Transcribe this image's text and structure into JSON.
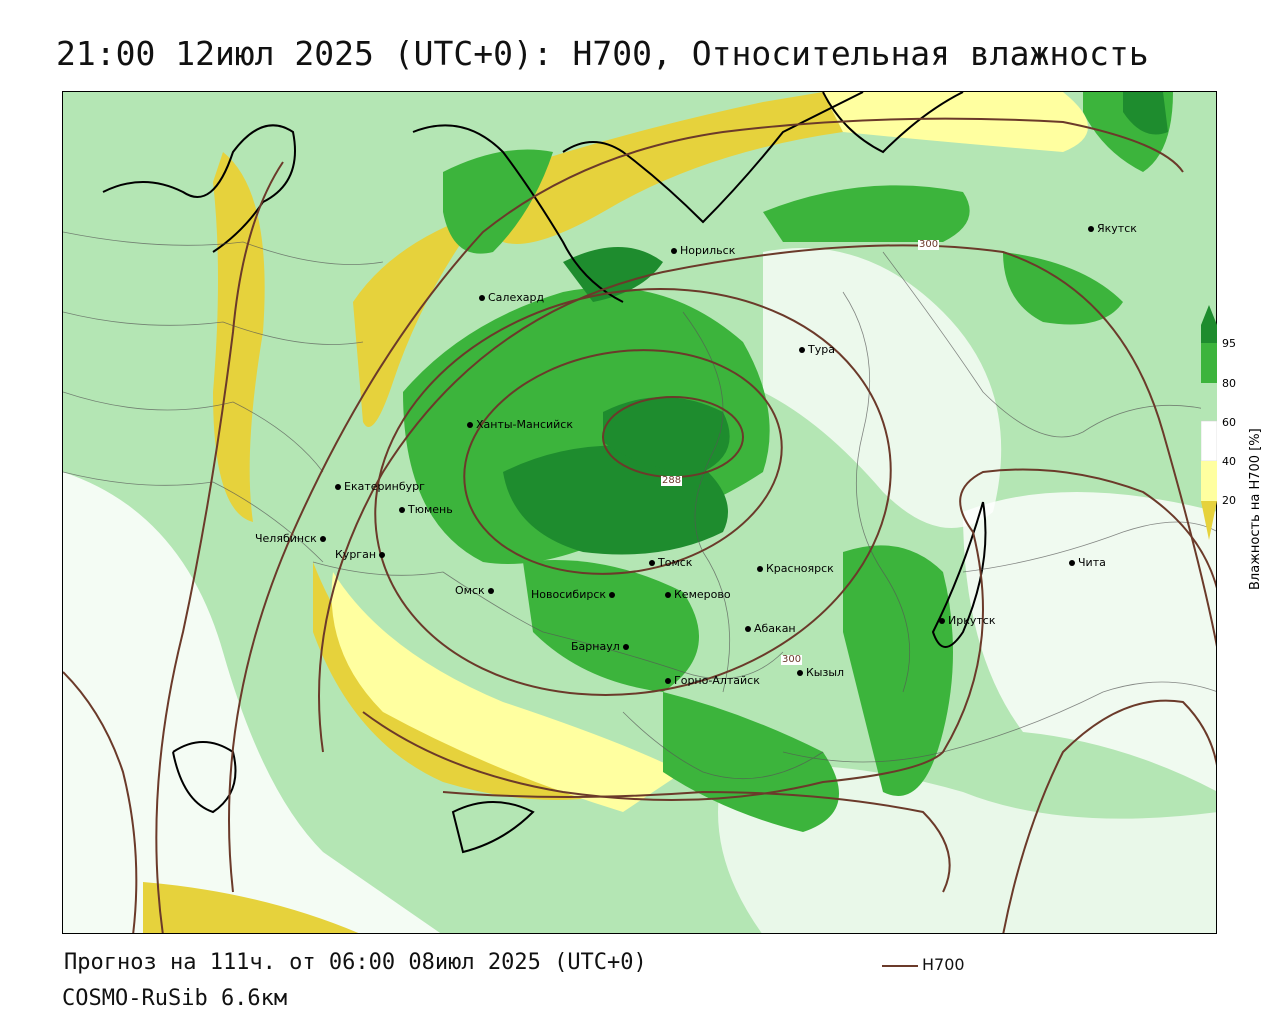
{
  "title": "21:00 12июл 2025 (UTC+0): H700, Относительная влажность",
  "forecast_line": "Прогноз на 111ч. от 06:00 08июл 2025 (UTC+0)",
  "model_line": "COSMO-RuSib 6.6км",
  "legend": {
    "series_name": "H700",
    "color": "#6b3a2a"
  },
  "colorbar": {
    "label": "Влажность на Н700 [%]",
    "ticks": [
      "95",
      "80",
      "60",
      "40",
      "20"
    ],
    "colors": {
      "95": "#1e8c2e",
      "80": "#3cb43c",
      "60": "#b4e6b4",
      "40": "#ffffff",
      "20": "#ffffa0",
      "low": "#e6d23c"
    }
  },
  "contour_labels": [
    "300",
    "288",
    "300"
  ],
  "cities": [
    {
      "name": "Якутск"
    },
    {
      "name": "Норильск"
    },
    {
      "name": "Салехард"
    },
    {
      "name": "Тура"
    },
    {
      "name": "Ханты-Мансийск"
    },
    {
      "name": "Екатеринбург"
    },
    {
      "name": "Тюмень"
    },
    {
      "name": "Челябинск"
    },
    {
      "name": "Курган"
    },
    {
      "name": "Омск"
    },
    {
      "name": "Новосибирск"
    },
    {
      "name": "Томск"
    },
    {
      "name": "Кемерово"
    },
    {
      "name": "Красноярск"
    },
    {
      "name": "Барнаул"
    },
    {
      "name": "Абакан"
    },
    {
      "name": "Горно-Алтайск"
    },
    {
      "name": "Кызыл"
    },
    {
      "name": "Иркутск"
    },
    {
      "name": "Чита"
    }
  ]
}
